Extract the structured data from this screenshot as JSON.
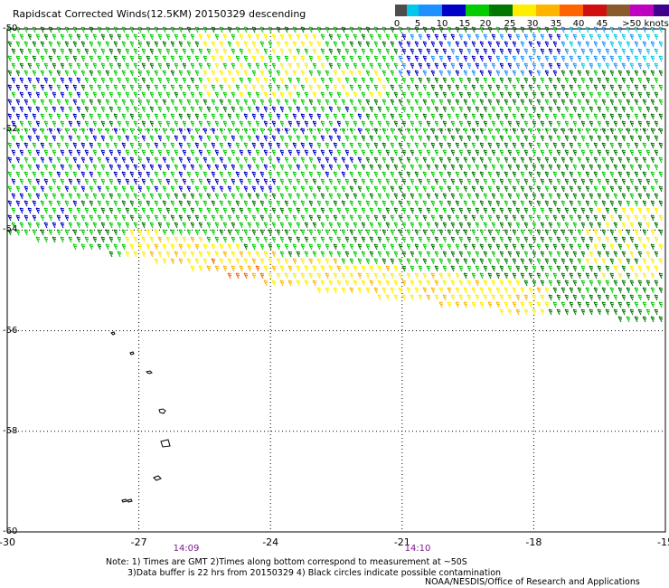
{
  "title": "Rapidscat Corrected Winds(12.5KM) 20150329 descending",
  "legend": {
    "colors": [
      "#4d4d4d",
      "#00c8e8",
      "#1e90ff",
      "#0000c8",
      "#00cc00",
      "#007800",
      "#ffee00",
      "#ffb400",
      "#ff6400",
      "#d01010",
      "#8b5a2b",
      "#c000c0",
      "#40008c"
    ],
    "labels": [
      "0",
      "5",
      "10",
      "15",
      "20",
      "25",
      "30",
      "35",
      "40",
      "45",
      ">50 knots"
    ]
  },
  "map": {
    "lon_range": [
      -30,
      -15
    ],
    "lat_range": [
      -60,
      -50
    ],
    "x_ticks": [
      "-30",
      "-27",
      "-24",
      "-21",
      "-18",
      "-15"
    ],
    "y_ticks": [
      "-50",
      "-52",
      "-54",
      "-56",
      "-58",
      "-60"
    ],
    "grid": "dotted",
    "time_labels": [
      "14:09",
      "14:10"
    ],
    "islands": [
      "South Sandwich Islands chain"
    ]
  },
  "notes": {
    "line1": "Note: 1) Times are GMT 2)Times along bottom correspond to measurement at ~50S",
    "line2": "3)Data buffer is 22 hrs from 20150329 4) Black circles indicate possible contamination"
  },
  "credit": "NOAA/NESDIS/Office of Research and Applications"
}
